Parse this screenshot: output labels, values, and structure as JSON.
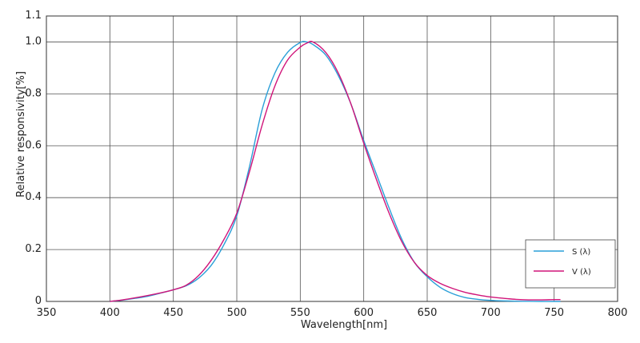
{
  "chart_data": {
    "type": "line",
    "title": "",
    "xlabel": "Wavelength[nm]",
    "ylabel": "Relative responsivity[%]",
    "xlim": [
      350,
      800
    ],
    "ylim": [
      0,
      1.1
    ],
    "grid": true,
    "legend_position": "bottom-right",
    "x_ticks": [
      "350",
      "400",
      "450",
      "500",
      "550",
      "600",
      "650",
      "700",
      "750",
      "800"
    ],
    "y_ticks": [
      "0",
      "0.2",
      "0.4",
      "0.6",
      "0.8",
      "1.0",
      "1.1"
    ],
    "series": [
      {
        "name": "S (λ)",
        "color": "#2a9fd8",
        "x": [
          400,
          410,
          420,
          430,
          440,
          450,
          460,
          470,
          480,
          490,
          500,
          510,
          520,
          530,
          540,
          550,
          555,
          560,
          570,
          580,
          590,
          600,
          610,
          620,
          630,
          640,
          650,
          660,
          670,
          680,
          690,
          700,
          710,
          720,
          730,
          740,
          750,
          755
        ],
        "y": [
          0.0,
          0.005,
          0.012,
          0.02,
          0.032,
          0.045,
          0.06,
          0.09,
          0.14,
          0.22,
          0.33,
          0.52,
          0.74,
          0.88,
          0.96,
          0.998,
          1.0,
          0.99,
          0.95,
          0.87,
          0.76,
          0.62,
          0.49,
          0.36,
          0.24,
          0.15,
          0.095,
          0.055,
          0.03,
          0.015,
          0.008,
          0.004,
          0.002,
          0.001,
          0.0005,
          0.0,
          0.0,
          0.0
        ]
      },
      {
        "name": "V (λ)",
        "color": "#d0157a",
        "x": [
          400,
          410,
          420,
          430,
          440,
          450,
          460,
          470,
          480,
          490,
          500,
          510,
          520,
          530,
          540,
          550,
          555,
          560,
          570,
          580,
          590,
          600,
          610,
          620,
          630,
          640,
          650,
          660,
          670,
          680,
          690,
          700,
          710,
          720,
          730,
          740,
          750,
          755
        ],
        "y": [
          0.0,
          0.006,
          0.014,
          0.023,
          0.033,
          0.045,
          0.062,
          0.1,
          0.16,
          0.24,
          0.34,
          0.5,
          0.68,
          0.83,
          0.93,
          0.98,
          0.995,
          1.0,
          0.96,
          0.88,
          0.76,
          0.61,
          0.47,
          0.34,
          0.23,
          0.15,
          0.1,
          0.07,
          0.05,
          0.035,
          0.025,
          0.017,
          0.012,
          0.008,
          0.006,
          0.006,
          0.007,
          0.007
        ]
      }
    ]
  }
}
